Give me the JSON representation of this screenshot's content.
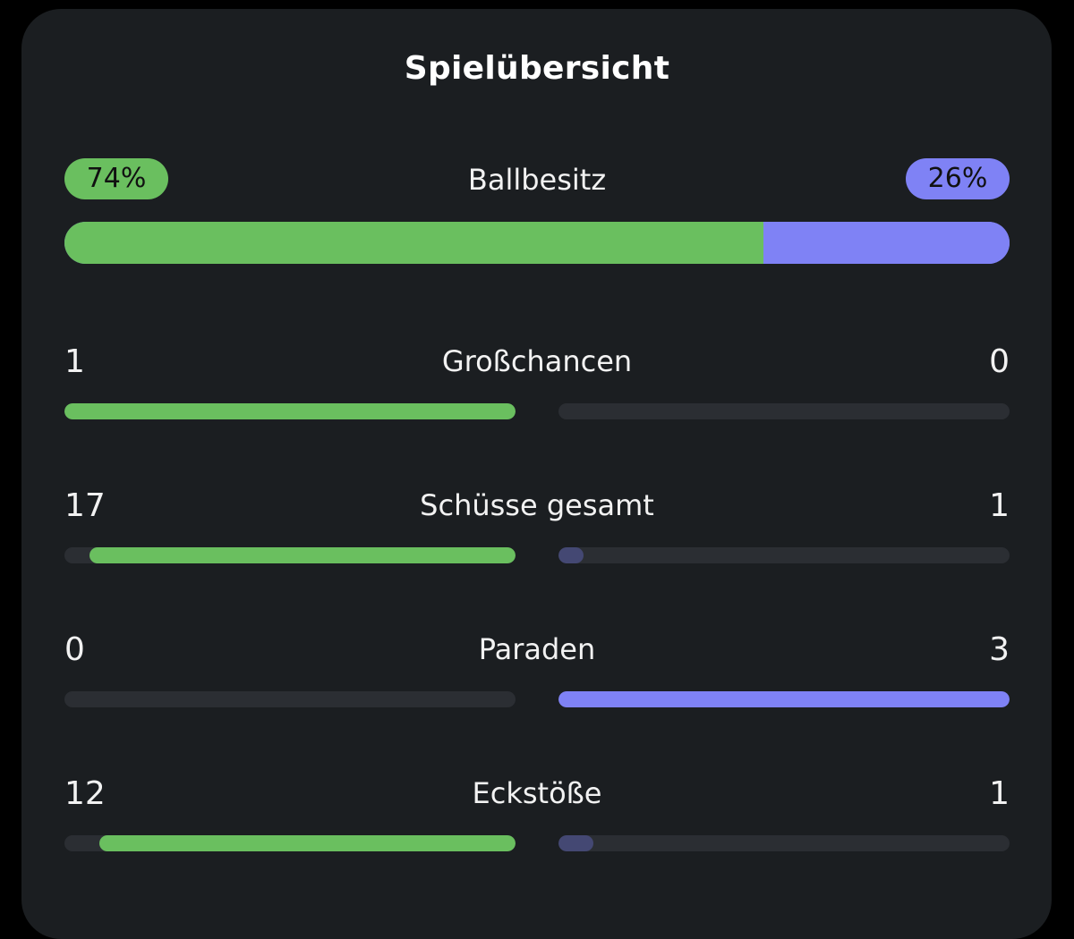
{
  "title": "Spielübersicht",
  "colors": {
    "home": "#6abf5f",
    "away": "#7f82f5",
    "away_dim": "#444873",
    "home_dim": "#3c5b3a",
    "track": "#2b2e33",
    "card_bg": "#1b1e21"
  },
  "possession": {
    "label": "Ballbesitz",
    "home_label": "74%",
    "away_label": "26%",
    "home_value": 74,
    "away_value": 26
  },
  "stats": [
    {
      "label": "Großchancen",
      "home": "1",
      "away": "0",
      "home_fraction": 1.0,
      "away_fraction": 0.0
    },
    {
      "label": "Schüsse gesamt",
      "home": "17",
      "away": "1",
      "home_fraction": 0.944,
      "away_fraction": 0.056
    },
    {
      "label": "Paraden",
      "home": "0",
      "away": "3",
      "home_fraction": 0.0,
      "away_fraction": 1.0
    },
    {
      "label": "Eckstöße",
      "home": "12",
      "away": "1",
      "home_fraction": 0.923,
      "away_fraction": 0.077
    }
  ]
}
